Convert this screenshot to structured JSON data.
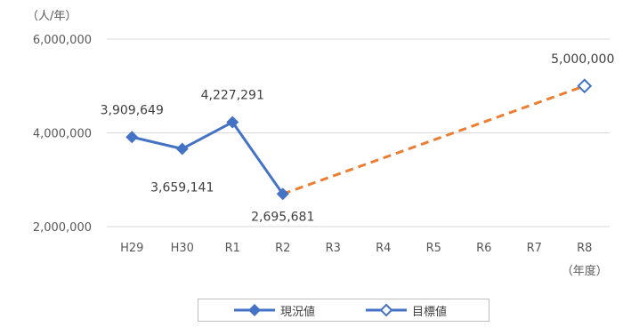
{
  "chart_data": {
    "type": "line",
    "y_unit_label": "（人/年）",
    "x_unit_label": "（年度）",
    "categories": [
      "H29",
      "H30",
      "R1",
      "R2",
      "R3",
      "R4",
      "R5",
      "R6",
      "R7",
      "R8"
    ],
    "ylim": [
      2000000,
      6000000
    ],
    "yticks": [
      "2,000,000",
      "4,000,000",
      "6,000,000"
    ],
    "ytick_values": [
      2000000,
      4000000,
      6000000
    ],
    "grid": true,
    "legend_position": "bottom",
    "series": [
      {
        "name": "現況値",
        "color": "#4472c4",
        "marker": "filled-diamond",
        "line_style": "solid",
        "points": [
          {
            "x": "H29",
            "y": 3909649,
            "label": "3,909,649"
          },
          {
            "x": "H30",
            "y": 3659141,
            "label": "3,659,141"
          },
          {
            "x": "R1",
            "y": 4227291,
            "label": "4,227,291"
          },
          {
            "x": "R2",
            "y": 2695681,
            "label": "2,695,681"
          }
        ]
      },
      {
        "name": "目標値",
        "color": "#4472c4",
        "marker": "hollow-diamond",
        "line_style": "none",
        "points": [
          {
            "x": "R8",
            "y": 5000000,
            "label": "5,000,000"
          }
        ]
      }
    ],
    "projection": {
      "from": {
        "x": "R2",
        "y": 2695681
      },
      "to": {
        "x": "R8",
        "y": 5000000
      },
      "color": "#ed7d31",
      "line_style": "dashed"
    }
  }
}
